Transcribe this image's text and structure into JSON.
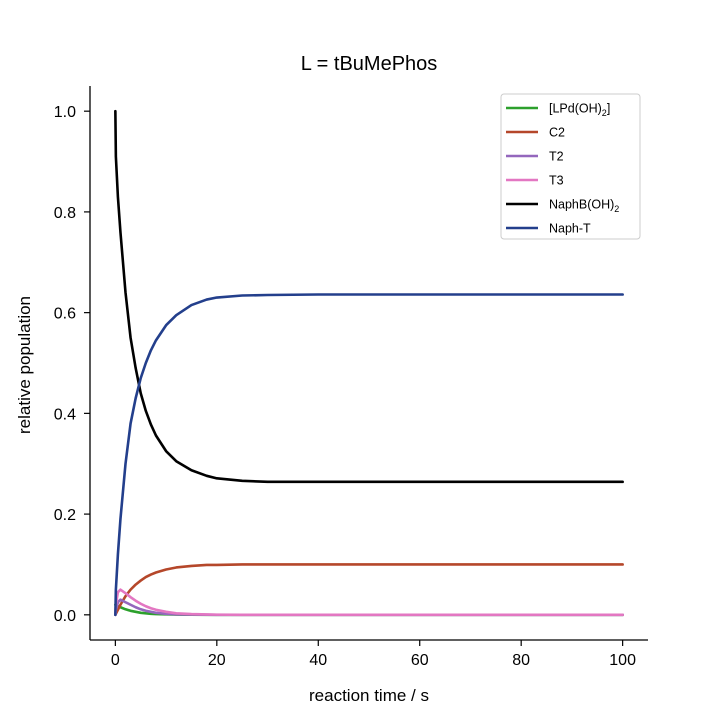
{
  "chart_data": {
    "type": "line",
    "title": "L = tBuMePhos",
    "xlabel": "reaction time / s",
    "ylabel": "relative population",
    "xlim": [
      -5,
      105
    ],
    "ylim": [
      -0.05,
      1.05
    ],
    "xticks": [
      0,
      20,
      40,
      60,
      80,
      100
    ],
    "xtick_labels": [
      "0",
      "20",
      "40",
      "60",
      "80",
      "100"
    ],
    "yticks": [
      0.0,
      0.2,
      0.4,
      0.6,
      0.8,
      1.0
    ],
    "ytick_labels": [
      "0.0",
      "0.2",
      "0.4",
      "0.6",
      "0.8",
      "1.0"
    ],
    "grid": false,
    "legend": "top-right",
    "x": [
      0,
      0.1,
      0.5,
      1,
      2,
      3,
      4,
      5,
      6,
      7,
      8,
      10,
      12,
      15,
      18,
      20,
      25,
      30,
      40,
      50,
      60,
      70,
      80,
      90,
      100
    ],
    "series": [
      {
        "name": "[LPd(OH)2]",
        "legend_main": "[LPd(OH)",
        "legend_sub": "2",
        "legend_tail": "]",
        "color": "#2ca02c",
        "values": [
          0.02,
          0.019,
          0.017,
          0.015,
          0.011,
          0.008,
          0.006,
          0.004,
          0.003,
          0.002,
          0.0015,
          0.001,
          0.0005,
          0.0002,
          0.0001,
          0,
          0,
          0,
          0,
          0,
          0,
          0,
          0,
          0,
          0
        ]
      },
      {
        "name": "C2",
        "legend_main": "C2",
        "legend_sub": "",
        "legend_tail": "",
        "color": "#b5472a",
        "values": [
          0,
          0.002,
          0.01,
          0.02,
          0.037,
          0.05,
          0.06,
          0.068,
          0.075,
          0.08,
          0.084,
          0.09,
          0.094,
          0.097,
          0.099,
          0.099,
          0.1,
          0.1,
          0.1,
          0.1,
          0.1,
          0.1,
          0.1,
          0.1,
          0.1
        ]
      },
      {
        "name": "T2",
        "legend_main": "T2",
        "legend_sub": "",
        "legend_tail": "",
        "color": "#9467bd",
        "values": [
          0,
          0.01,
          0.025,
          0.03,
          0.025,
          0.02,
          0.015,
          0.011,
          0.008,
          0.006,
          0.004,
          0.002,
          0.001,
          0.0005,
          0.0002,
          0,
          0,
          0,
          0,
          0,
          0,
          0,
          0,
          0,
          0
        ]
      },
      {
        "name": "T3",
        "legend_main": "T3",
        "legend_sub": "",
        "legend_tail": "",
        "color": "#e377c2",
        "values": [
          0,
          0.02,
          0.045,
          0.05,
          0.043,
          0.035,
          0.028,
          0.022,
          0.017,
          0.013,
          0.01,
          0.006,
          0.003,
          0.0015,
          0.0007,
          0.0004,
          0,
          0,
          0,
          0,
          0,
          0,
          0,
          0,
          0
        ]
      },
      {
        "name": "NaphB(OH)2",
        "legend_main": "NaphB(OH)",
        "legend_sub": "2",
        "legend_tail": "",
        "color": "#000000",
        "values": [
          1.0,
          0.91,
          0.83,
          0.76,
          0.64,
          0.55,
          0.49,
          0.44,
          0.405,
          0.378,
          0.356,
          0.325,
          0.305,
          0.287,
          0.276,
          0.271,
          0.266,
          0.264,
          0.264,
          0.264,
          0.264,
          0.264,
          0.264,
          0.264,
          0.264
        ]
      },
      {
        "name": "Naph-T",
        "legend_main": "Naph-T",
        "legend_sub": "",
        "legend_tail": "",
        "color": "#233f8c",
        "values": [
          0,
          0.05,
          0.12,
          0.19,
          0.3,
          0.38,
          0.43,
          0.47,
          0.5,
          0.525,
          0.545,
          0.575,
          0.595,
          0.615,
          0.626,
          0.63,
          0.634,
          0.635,
          0.636,
          0.636,
          0.636,
          0.636,
          0.636,
          0.636,
          0.636
        ]
      }
    ]
  }
}
